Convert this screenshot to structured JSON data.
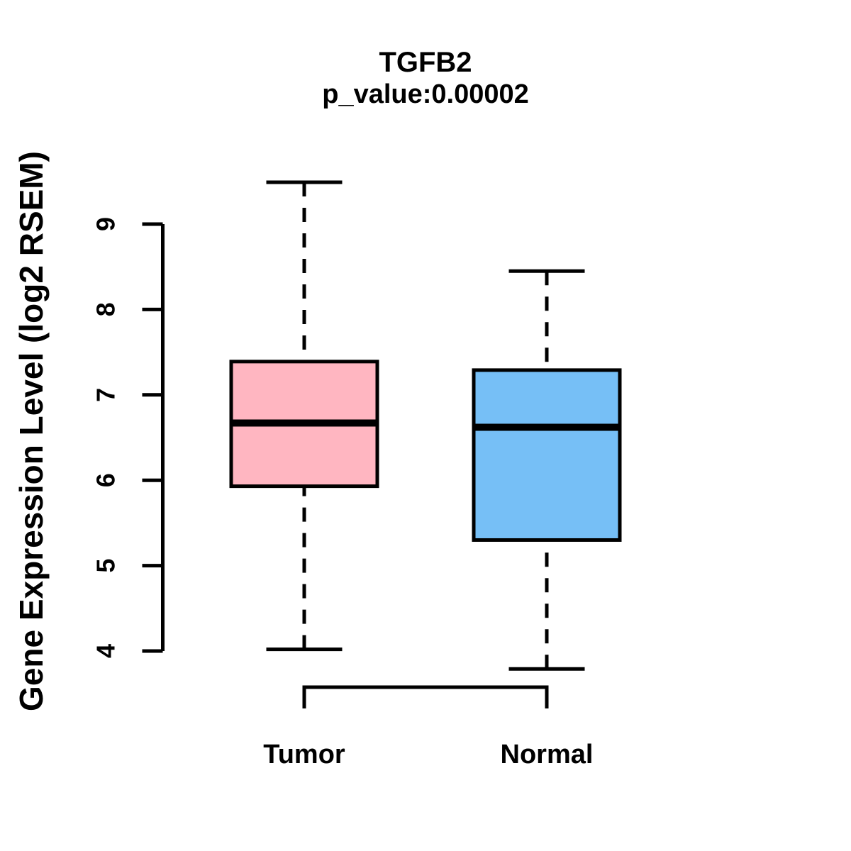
{
  "chart_data": {
    "type": "boxplot",
    "title": "TGFB2",
    "subtitle": "p_value:0.00002",
    "ylabel": "Gene Expression Level (log2 RSEM)",
    "xlabel": "",
    "categories": [
      "Tumor",
      "Normal"
    ],
    "y_ticks": [
      4,
      5,
      6,
      7,
      8,
      9
    ],
    "ylim": [
      3.5,
      9.6
    ],
    "grid": false,
    "legend_position": "none",
    "series": [
      {
        "name": "Tumor",
        "color": "#FFB6C1",
        "whisker_low": 4.02,
        "q1": 5.93,
        "median": 6.67,
        "q3": 7.39,
        "whisker_high": 9.49
      },
      {
        "name": "Normal",
        "color": "#76BFF6",
        "whisker_low": 3.79,
        "q1": 5.3,
        "median": 6.62,
        "q3": 7.29,
        "whisker_high": 8.45
      }
    ],
    "colors": {
      "tumor_fill": "#FFB6C1",
      "normal_fill": "#76BFF6",
      "stroke": "#000000",
      "background": "#ffffff"
    }
  }
}
